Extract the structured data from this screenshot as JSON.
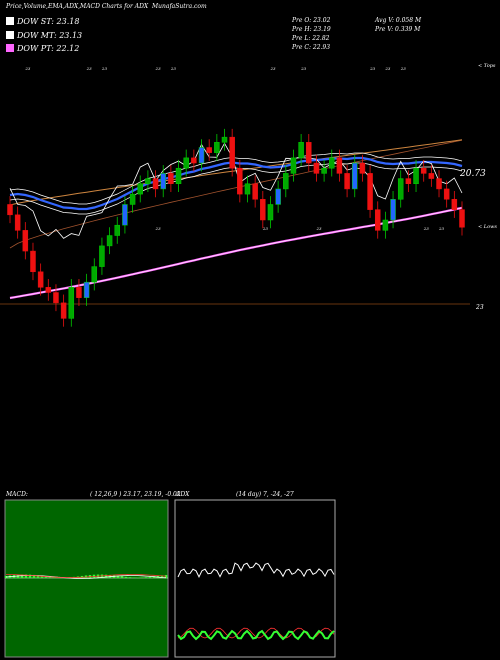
{
  "header": {
    "title": "Price,Volume,EMA,ADX,MACD Charts for ADX",
    "site": "MunafaSutra.com"
  },
  "legend": [
    {
      "label": "DOW ST: 23.18",
      "color": "#ffffff"
    },
    {
      "label": "DOW MT: 23.13",
      "color": "#ffffff"
    },
    {
      "label": "DOW PT: 22.12",
      "color": "#ff66ff"
    }
  ],
  "ohlc": {
    "open": "Pre   O: 23.02",
    "high": "Pre   H: 23.19",
    "low": "Pre   L: 22.82",
    "close": "Pre   C: 22.93",
    "avg_vol": "Avg V: 0.058 M",
    "prev_vol": "Pre   V: 0.339 M"
  },
  "labels": {
    "tops": "< Tops",
    "lows": "< Lows",
    "ema_value": "20.73",
    "price_ref": "23"
  },
  "macd_panel": {
    "title": "MACD:",
    "params": "( 12,26,9 ) 23.17, 23.19, -0.02"
  },
  "adx_panel": {
    "title": "ADX",
    "params": "(14  day) 7, -24, -27"
  },
  "chart_data": {
    "type": "candlestick",
    "close": [
      23.05,
      22.9,
      22.7,
      22.5,
      22.35,
      22.3,
      22.2,
      22.05,
      22.35,
      22.25,
      22.4,
      22.55,
      22.75,
      22.85,
      22.95,
      23.15,
      23.25,
      23.35,
      23.4,
      23.3,
      23.45,
      23.35,
      23.5,
      23.6,
      23.55,
      23.7,
      23.65,
      23.75,
      23.8,
      23.5,
      23.25,
      23.35,
      23.2,
      23.0,
      23.15,
      23.3,
      23.45,
      23.6,
      23.75,
      23.55,
      23.45,
      23.5,
      23.6,
      23.45,
      23.3,
      23.55,
      23.45,
      23.1,
      22.9,
      23.0,
      23.2,
      23.4,
      23.35,
      23.5,
      23.45,
      23.4,
      23.3,
      23.2,
      23.1,
      22.93
    ],
    "candle_color": [
      "r",
      "r",
      "r",
      "r",
      "r",
      "r",
      "r",
      "r",
      "g",
      "r",
      "g",
      "g",
      "g",
      "g",
      "g",
      "g",
      "g",
      "g",
      "g",
      "r",
      "g",
      "r",
      "g",
      "g",
      "r",
      "g",
      "r",
      "g",
      "g",
      "r",
      "r",
      "g",
      "r",
      "r",
      "g",
      "g",
      "g",
      "g",
      "g",
      "r",
      "r",
      "g",
      "g",
      "r",
      "r",
      "g",
      "r",
      "r",
      "r",
      "g",
      "g",
      "g",
      "r",
      "g",
      "r",
      "r",
      "r",
      "r",
      "r",
      "r"
    ],
    "ema_fast": [
      22.7,
      22.72,
      22.7,
      22.66,
      22.6,
      22.55,
      22.5,
      22.45,
      22.44,
      22.42,
      22.42,
      22.45,
      22.5,
      22.56,
      22.62,
      22.7,
      22.78,
      22.86,
      22.93,
      22.97,
      23.02,
      23.05,
      23.09,
      23.14,
      23.17,
      23.22,
      23.25,
      23.29,
      23.33,
      23.35,
      23.33,
      23.33,
      23.31,
      23.27,
      23.25,
      23.26,
      23.28,
      23.32,
      23.37,
      23.39,
      23.4,
      23.41,
      23.43,
      23.43,
      23.42,
      23.44,
      23.44,
      23.41,
      23.36,
      23.33,
      23.32,
      23.33,
      23.33,
      23.35,
      23.36,
      23.36,
      23.35,
      23.34,
      23.32,
      23.28
    ],
    "macd_note": "MACD and ADX rendered as sub-panels",
    "x_range": [
      0,
      59
    ],
    "y_range": [
      21.6,
      24.4
    ]
  }
}
